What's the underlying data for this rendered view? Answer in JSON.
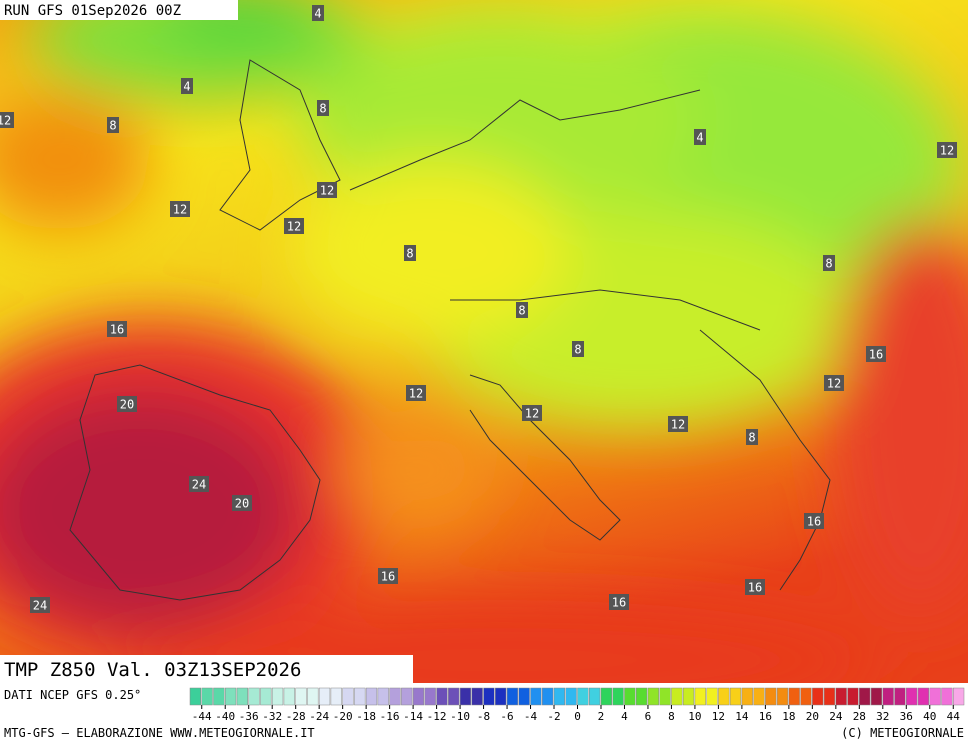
{
  "header": {
    "run": "RUN GFS 01Sep2026 00Z",
    "title": "TMP Z850 Val. 03Z13SEP2026"
  },
  "contour_labels": [
    4,
    4,
    8,
    12,
    8,
    4,
    12,
    12,
    12,
    12,
    8,
    8,
    8,
    16,
    8,
    16,
    12,
    12,
    20,
    12,
    12,
    8,
    24,
    20,
    16,
    16,
    16,
    16,
    24
  ],
  "colorbar": {
    "labels": [
      -44,
      -40,
      -36,
      -32,
      -28,
      -24,
      -20,
      -18,
      -16,
      -14,
      -12,
      -10,
      -8,
      -6,
      -4,
      -2,
      0,
      2,
      4,
      6,
      8,
      10,
      12,
      14,
      16,
      18,
      20,
      24,
      28,
      32,
      36,
      40,
      44
    ]
  },
  "footer": {
    "source": "DATI NCEP GFS 0.25°",
    "credit": "MTG-GFS – ELABORAZIONE WWW.METEOGIORNALE.IT",
    "copyright": "(C) METEOGIORNALE"
  }
}
